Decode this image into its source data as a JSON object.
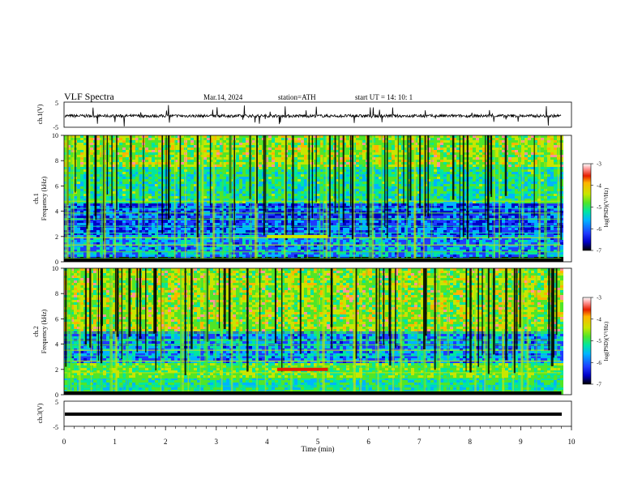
{
  "header": {
    "title": "VLF  Spectra",
    "date": "Mar.14, 2024",
    "station": "station=ATH",
    "start": "start  UT  =   14: 10: 1"
  },
  "chart_data": [
    {
      "type": "line",
      "ylabel": "ch.1(V)",
      "ylim": [
        -5,
        5
      ],
      "yticks": [
        "5",
        "-5"
      ],
      "x_range": [
        0,
        10
      ],
      "trace": "noisy waveform near -0.5 V with frequent spikes reaching about ±4 V, ending near 9.8 min"
    },
    {
      "type": "heatmap",
      "ylabel_channel": "ch.1",
      "ylabel": "Frequency  (kHz)",
      "ylim": [
        0,
        10
      ],
      "yticks": [
        "0",
        "2",
        "4",
        "6",
        "8",
        "10"
      ],
      "x_range": [
        0,
        10
      ],
      "data_end_min": 9.8,
      "bands": [
        {
          "from_khz": 0,
          "to_khz": 0.5,
          "level": "saturated"
        },
        {
          "from_khz": 0.5,
          "to_khz": 2.2,
          "level": "low-mid"
        },
        {
          "from_khz": 2.2,
          "to_khz": 4.8,
          "level": "low"
        },
        {
          "from_khz": 4.8,
          "to_khz": 7.5,
          "level": "mid"
        },
        {
          "from_khz": 7.5,
          "to_khz": 10,
          "level": "high"
        }
      ],
      "features": [
        "broadband vertical impulses throughout",
        "enhanced band near 2 kHz between 4 and 5 min"
      ]
    },
    {
      "type": "heatmap",
      "ylabel_channel": "ch.2",
      "ylabel": "Frequency  (kHz)",
      "ylim": [
        0,
        10
      ],
      "yticks": [
        "0",
        "2",
        "4",
        "6",
        "8",
        "10"
      ],
      "x_range": [
        0,
        10
      ],
      "data_end_min": 9.8,
      "bands": [
        {
          "from_khz": 0,
          "to_khz": 1.5,
          "level": "mid-striped"
        },
        {
          "from_khz": 1.5,
          "to_khz": 2.5,
          "level": "mid-high"
        },
        {
          "from_khz": 2.5,
          "to_khz": 5,
          "level": "low-mid"
        },
        {
          "from_khz": 5,
          "to_khz": 10,
          "level": "high"
        }
      ],
      "features": [
        "broadband vertical impulses throughout",
        "strong line near 2 kHz between 4.2 and 5.2 min"
      ]
    },
    {
      "type": "line",
      "ylabel": "ch.3(V)",
      "ylim": [
        -5,
        5
      ],
      "yticks": [
        "5",
        "-5"
      ],
      "x_range": [
        0,
        10
      ],
      "trace": "flat thick line near -2 V, ending near 9.8 min"
    }
  ],
  "x_axis": {
    "label": "Time  (min)",
    "ticks": [
      "0",
      "1",
      "2",
      "3",
      "4",
      "5",
      "6",
      "7",
      "8",
      "9",
      "10"
    ]
  },
  "colorbars": [
    {
      "label": "log(PSD)(V²/Hz)",
      "ticks": [
        "-3",
        "-4",
        "-5",
        "-6",
        "-7"
      ]
    },
    {
      "label": "log(PSD)(V²/Hz)",
      "ticks": [
        "-3",
        "-4",
        "-5",
        "-6",
        "-7"
      ]
    }
  ],
  "colors": {
    "scale": [
      "#000000",
      "#0000c8",
      "#1e3cff",
      "#00b4ff",
      "#00e6a0",
      "#50e628",
      "#c8e600",
      "#ffb400",
      "#e61e00",
      "#ff9696",
      "#ffffff"
    ]
  }
}
